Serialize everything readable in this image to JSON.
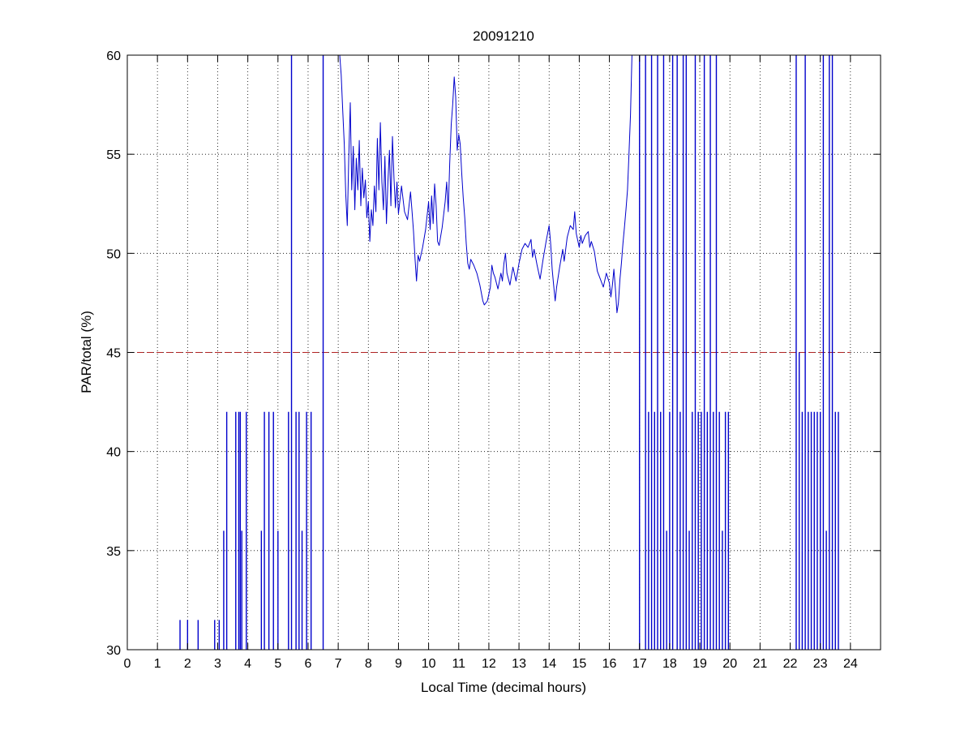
{
  "chart_data": {
    "type": "line",
    "title": "20091210",
    "xlabel": "Local Time (decimal hours)",
    "ylabel": "PAR/total (%)",
    "xlim": [
      0,
      25
    ],
    "ylim": [
      30,
      60
    ],
    "xticks": [
      0,
      1,
      2,
      3,
      4,
      5,
      6,
      7,
      8,
      9,
      10,
      11,
      12,
      13,
      14,
      15,
      16,
      17,
      18,
      19,
      20,
      21,
      22,
      23,
      24
    ],
    "yticks": [
      30,
      35,
      40,
      45,
      50,
      55,
      60
    ],
    "grid": true,
    "threshold": {
      "y": 45,
      "style": "dashed",
      "color": "#b22222"
    },
    "series": [
      {
        "color": "#0000cc",
        "points": [
          [
            7.05,
            60
          ],
          [
            7.1,
            59.0
          ],
          [
            7.15,
            57.2
          ],
          [
            7.2,
            55.5
          ],
          [
            7.25,
            53.0
          ],
          [
            7.3,
            51.4
          ],
          [
            7.35,
            54.8
          ],
          [
            7.4,
            57.6
          ],
          [
            7.45,
            53.2
          ],
          [
            7.5,
            55.4
          ],
          [
            7.55,
            52.2
          ],
          [
            7.6,
            54.8
          ],
          [
            7.65,
            53.2
          ],
          [
            7.7,
            55.7
          ],
          [
            7.75,
            52.4
          ],
          [
            7.8,
            54.3
          ],
          [
            7.85,
            52.8
          ],
          [
            7.9,
            53.7
          ],
          [
            7.95,
            51.8
          ],
          [
            8.0,
            52.6
          ],
          [
            8.05,
            50.6
          ],
          [
            8.1,
            52.2
          ],
          [
            8.15,
            51.4
          ],
          [
            8.2,
            53.4
          ],
          [
            8.25,
            52.1
          ],
          [
            8.3,
            55.8
          ],
          [
            8.35,
            53.2
          ],
          [
            8.4,
            56.6
          ],
          [
            8.45,
            53.6
          ],
          [
            8.5,
            52.2
          ],
          [
            8.55,
            54.9
          ],
          [
            8.6,
            51.5
          ],
          [
            8.65,
            53.6
          ],
          [
            8.7,
            55.2
          ],
          [
            8.75,
            52.4
          ],
          [
            8.8,
            55.9
          ],
          [
            8.85,
            53.8
          ],
          [
            8.9,
            52.3
          ],
          [
            8.95,
            53.6
          ],
          [
            9.0,
            52.0
          ],
          [
            9.1,
            53.4
          ],
          [
            9.2,
            52.1
          ],
          [
            9.3,
            51.7
          ],
          [
            9.4,
            53.1
          ],
          [
            9.45,
            52.1
          ],
          [
            9.5,
            51.1
          ],
          [
            9.55,
            49.7
          ],
          [
            9.6,
            48.6
          ],
          [
            9.65,
            49.9
          ],
          [
            9.7,
            49.6
          ],
          [
            9.8,
            50.3
          ],
          [
            9.9,
            51.2
          ],
          [
            10.0,
            52.6
          ],
          [
            10.05,
            51.2
          ],
          [
            10.1,
            52.9
          ],
          [
            10.15,
            51.5
          ],
          [
            10.2,
            53.5
          ],
          [
            10.25,
            52.4
          ],
          [
            10.3,
            50.6
          ],
          [
            10.35,
            50.4
          ],
          [
            10.45,
            51.3
          ],
          [
            10.55,
            52.6
          ],
          [
            10.6,
            53.6
          ],
          [
            10.65,
            52.1
          ],
          [
            10.7,
            54.5
          ],
          [
            10.75,
            56.5
          ],
          [
            10.8,
            57.5
          ],
          [
            10.85,
            58.9
          ],
          [
            10.9,
            57.9
          ],
          [
            10.95,
            55.2
          ],
          [
            11.0,
            56.0
          ],
          [
            11.05,
            55.5
          ],
          [
            11.1,
            54.0
          ],
          [
            11.15,
            52.8
          ],
          [
            11.2,
            51.8
          ],
          [
            11.25,
            50.5
          ],
          [
            11.3,
            49.5
          ],
          [
            11.35,
            49.2
          ],
          [
            11.4,
            49.7
          ],
          [
            11.5,
            49.4
          ],
          [
            11.6,
            49.0
          ],
          [
            11.7,
            48.4
          ],
          [
            11.8,
            47.6
          ],
          [
            11.85,
            47.4
          ],
          [
            11.95,
            47.6
          ],
          [
            12.05,
            48.3
          ],
          [
            12.1,
            49.4
          ],
          [
            12.15,
            49.0
          ],
          [
            12.2,
            48.8
          ],
          [
            12.3,
            48.2
          ],
          [
            12.4,
            49.0
          ],
          [
            12.45,
            48.6
          ],
          [
            12.5,
            49.5
          ],
          [
            12.55,
            50.0
          ],
          [
            12.6,
            49.0
          ],
          [
            12.7,
            48.4
          ],
          [
            12.8,
            49.3
          ],
          [
            12.9,
            48.6
          ],
          [
            13.0,
            49.5
          ],
          [
            13.1,
            50.2
          ],
          [
            13.2,
            50.5
          ],
          [
            13.3,
            50.3
          ],
          [
            13.4,
            50.7
          ],
          [
            13.45,
            49.8
          ],
          [
            13.5,
            50.2
          ],
          [
            13.6,
            49.4
          ],
          [
            13.7,
            48.7
          ],
          [
            13.8,
            49.7
          ],
          [
            13.9,
            50.6
          ],
          [
            14.0,
            51.4
          ],
          [
            14.05,
            50.5
          ],
          [
            14.1,
            49.2
          ],
          [
            14.15,
            48.4
          ],
          [
            14.2,
            47.6
          ],
          [
            14.25,
            48.3
          ],
          [
            14.35,
            49.3
          ],
          [
            14.45,
            50.2
          ],
          [
            14.5,
            49.6
          ],
          [
            14.6,
            50.8
          ],
          [
            14.7,
            51.4
          ],
          [
            14.8,
            51.2
          ],
          [
            14.85,
            52.1
          ],
          [
            14.9,
            51.0
          ],
          [
            15.0,
            50.3
          ],
          [
            15.05,
            50.9
          ],
          [
            15.1,
            50.5
          ],
          [
            15.2,
            50.9
          ],
          [
            15.3,
            51.1
          ],
          [
            15.35,
            50.3
          ],
          [
            15.4,
            50.6
          ],
          [
            15.5,
            50.1
          ],
          [
            15.55,
            49.6
          ],
          [
            15.6,
            49.1
          ],
          [
            15.7,
            48.7
          ],
          [
            15.8,
            48.3
          ],
          [
            15.9,
            49.0
          ],
          [
            16.0,
            48.5
          ],
          [
            16.05,
            47.8
          ],
          [
            16.1,
            48.4
          ],
          [
            16.15,
            49.2
          ],
          [
            16.2,
            48.2
          ],
          [
            16.25,
            47.0
          ],
          [
            16.3,
            47.5
          ],
          [
            16.35,
            48.7
          ],
          [
            16.4,
            49.5
          ],
          [
            16.45,
            50.5
          ],
          [
            16.5,
            51.3
          ],
          [
            16.55,
            52.2
          ],
          [
            16.6,
            53.2
          ],
          [
            16.65,
            55.0
          ],
          [
            16.7,
            57.0
          ],
          [
            16.75,
            60
          ]
        ]
      }
    ],
    "spikes": [
      {
        "x": 1.75,
        "y1": 30,
        "y2": 31.5
      },
      {
        "x": 2.0,
        "y1": 30,
        "y2": 31.5
      },
      {
        "x": 2.35,
        "y1": 30,
        "y2": 31.5
      },
      {
        "x": 2.9,
        "y1": 30,
        "y2": 31.5
      },
      {
        "x": 3.05,
        "y1": 30,
        "y2": 31.5
      },
      {
        "x": 3.2,
        "y1": 30,
        "y2": 36
      },
      {
        "x": 3.3,
        "y1": 30,
        "y2": 42
      },
      {
        "x": 3.6,
        "y1": 30,
        "y2": 42
      },
      {
        "x": 3.7,
        "y1": 30,
        "y2": 42
      },
      {
        "x": 3.75,
        "y1": 30,
        "y2": 42
      },
      {
        "x": 3.8,
        "y1": 30,
        "y2": 36
      },
      {
        "x": 3.95,
        "y1": 30,
        "y2": 42
      },
      {
        "x": 4.45,
        "y1": 30,
        "y2": 36
      },
      {
        "x": 4.55,
        "y1": 30,
        "y2": 42
      },
      {
        "x": 4.7,
        "y1": 30,
        "y2": 42
      },
      {
        "x": 4.85,
        "y1": 30,
        "y2": 42
      },
      {
        "x": 5.0,
        "y1": 30,
        "y2": 36
      },
      {
        "x": 5.35,
        "y1": 30,
        "y2": 42
      },
      {
        "x": 5.45,
        "y1": 30,
        "y2": 60
      },
      {
        "x": 5.6,
        "y1": 30,
        "y2": 42
      },
      {
        "x": 5.7,
        "y1": 30,
        "y2": 42
      },
      {
        "x": 5.8,
        "y1": 30,
        "y2": 36
      },
      {
        "x": 5.95,
        "y1": 30,
        "y2": 42
      },
      {
        "x": 6.1,
        "y1": 30,
        "y2": 42
      },
      {
        "x": 6.5,
        "y1": 30,
        "y2": 60
      },
      {
        "x": 17.0,
        "y1": 30,
        "y2": 60
      },
      {
        "x": 17.2,
        "y1": 30,
        "y2": 60
      },
      {
        "x": 17.3,
        "y1": 30,
        "y2": 42
      },
      {
        "x": 17.4,
        "y1": 30,
        "y2": 60
      },
      {
        "x": 17.5,
        "y1": 30,
        "y2": 42
      },
      {
        "x": 17.6,
        "y1": 30,
        "y2": 60
      },
      {
        "x": 17.7,
        "y1": 30,
        "y2": 42
      },
      {
        "x": 17.8,
        "y1": 30,
        "y2": 60
      },
      {
        "x": 17.9,
        "y1": 30,
        "y2": 36
      },
      {
        "x": 18.0,
        "y1": 30,
        "y2": 42
      },
      {
        "x": 18.1,
        "y1": 30,
        "y2": 60
      },
      {
        "x": 18.25,
        "y1": 30,
        "y2": 60
      },
      {
        "x": 18.35,
        "y1": 30,
        "y2": 42
      },
      {
        "x": 18.45,
        "y1": 30,
        "y2": 60
      },
      {
        "x": 18.55,
        "y1": 30,
        "y2": 60
      },
      {
        "x": 18.65,
        "y1": 30,
        "y2": 36
      },
      {
        "x": 18.75,
        "y1": 30,
        "y2": 42
      },
      {
        "x": 18.85,
        "y1": 30,
        "y2": 60
      },
      {
        "x": 18.95,
        "y1": 30,
        "y2": 42
      },
      {
        "x": 19.05,
        "y1": 30,
        "y2": 42
      },
      {
        "x": 19.15,
        "y1": 30,
        "y2": 60
      },
      {
        "x": 19.25,
        "y1": 30,
        "y2": 42
      },
      {
        "x": 19.35,
        "y1": 30,
        "y2": 60
      },
      {
        "x": 19.45,
        "y1": 30,
        "y2": 42
      },
      {
        "x": 19.55,
        "y1": 30,
        "y2": 60
      },
      {
        "x": 19.65,
        "y1": 30,
        "y2": 42
      },
      {
        "x": 19.75,
        "y1": 30,
        "y2": 36
      },
      {
        "x": 19.85,
        "y1": 30,
        "y2": 42
      },
      {
        "x": 19.95,
        "y1": 30,
        "y2": 42
      },
      {
        "x": 22.2,
        "y1": 30,
        "y2": 60
      },
      {
        "x": 22.3,
        "y1": 30,
        "y2": 45
      },
      {
        "x": 22.4,
        "y1": 30,
        "y2": 42
      },
      {
        "x": 22.5,
        "y1": 30,
        "y2": 60
      },
      {
        "x": 22.6,
        "y1": 30,
        "y2": 42
      },
      {
        "x": 22.7,
        "y1": 30,
        "y2": 42
      },
      {
        "x": 22.8,
        "y1": 30,
        "y2": 42
      },
      {
        "x": 22.9,
        "y1": 30,
        "y2": 42
      },
      {
        "x": 23.0,
        "y1": 30,
        "y2": 42
      },
      {
        "x": 23.1,
        "y1": 30,
        "y2": 60
      },
      {
        "x": 23.2,
        "y1": 30,
        "y2": 36
      },
      {
        "x": 23.3,
        "y1": 30,
        "y2": 60
      },
      {
        "x": 23.4,
        "y1": 30,
        "y2": 60
      },
      {
        "x": 23.5,
        "y1": 30,
        "y2": 42
      },
      {
        "x": 23.6,
        "y1": 30,
        "y2": 42
      }
    ]
  }
}
